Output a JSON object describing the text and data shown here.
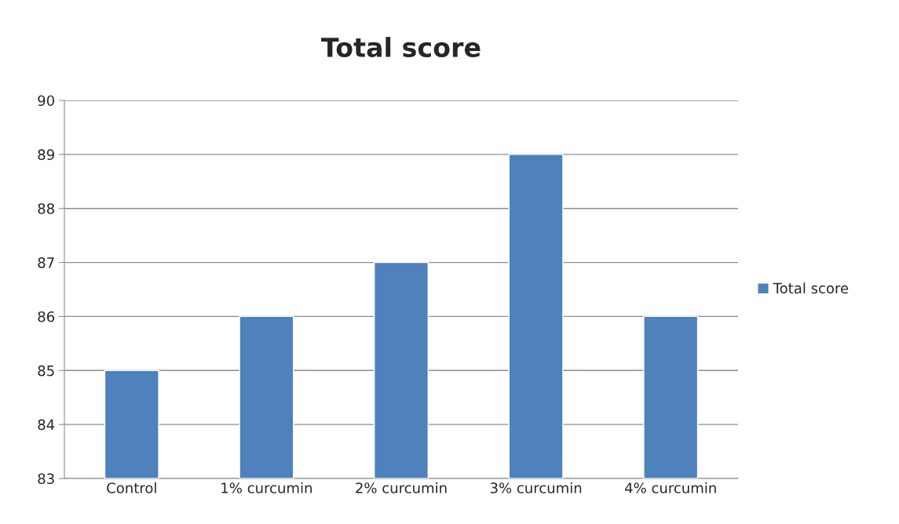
{
  "chart_data": {
    "type": "bar",
    "title": "Total score",
    "categories": [
      "Control",
      "1% curcumin",
      "2% curcumin",
      "3% curcumin",
      "4% curcumin"
    ],
    "series": [
      {
        "name": "Total score",
        "color": "#4f81bd",
        "values": [
          85,
          86,
          87,
          89,
          86
        ]
      }
    ],
    "ylim": [
      83,
      90
    ],
    "yticks": [
      83,
      84,
      85,
      86,
      87,
      88,
      89,
      90
    ],
    "grid": "y",
    "legend": "right"
  }
}
